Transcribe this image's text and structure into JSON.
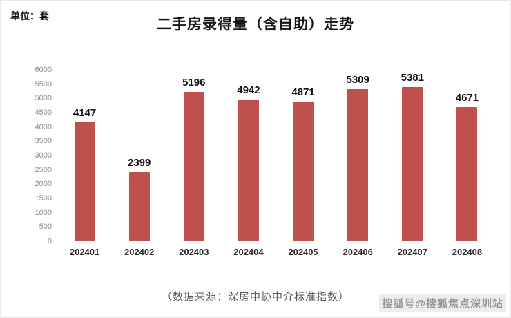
{
  "header": {
    "unit_label": "单位：套",
    "title": "二手房录得量（含自助）走势"
  },
  "chart_data": {
    "type": "bar",
    "title": "二手房录得量（含自助）走势",
    "xlabel": "",
    "ylabel": "单位：套",
    "categories": [
      "202401",
      "202402",
      "202403",
      "202404",
      "202405",
      "202406",
      "202407",
      "202408"
    ],
    "values": [
      4147,
      2399,
      5196,
      4942,
      4871,
      5309,
      5381,
      4671
    ],
    "ylim": [
      0,
      6000
    ],
    "yticks": [
      0,
      500,
      1000,
      1500,
      2000,
      2500,
      3000,
      3500,
      4000,
      4500,
      5000,
      5500,
      6000
    ],
    "grid": false,
    "legend_position": "none",
    "bar_color": "#c0504d"
  },
  "footer": {
    "source": "（数据来源：深房中协中介标准指数）"
  },
  "watermark": {
    "text": "搜狐号@搜狐焦点深圳站"
  }
}
